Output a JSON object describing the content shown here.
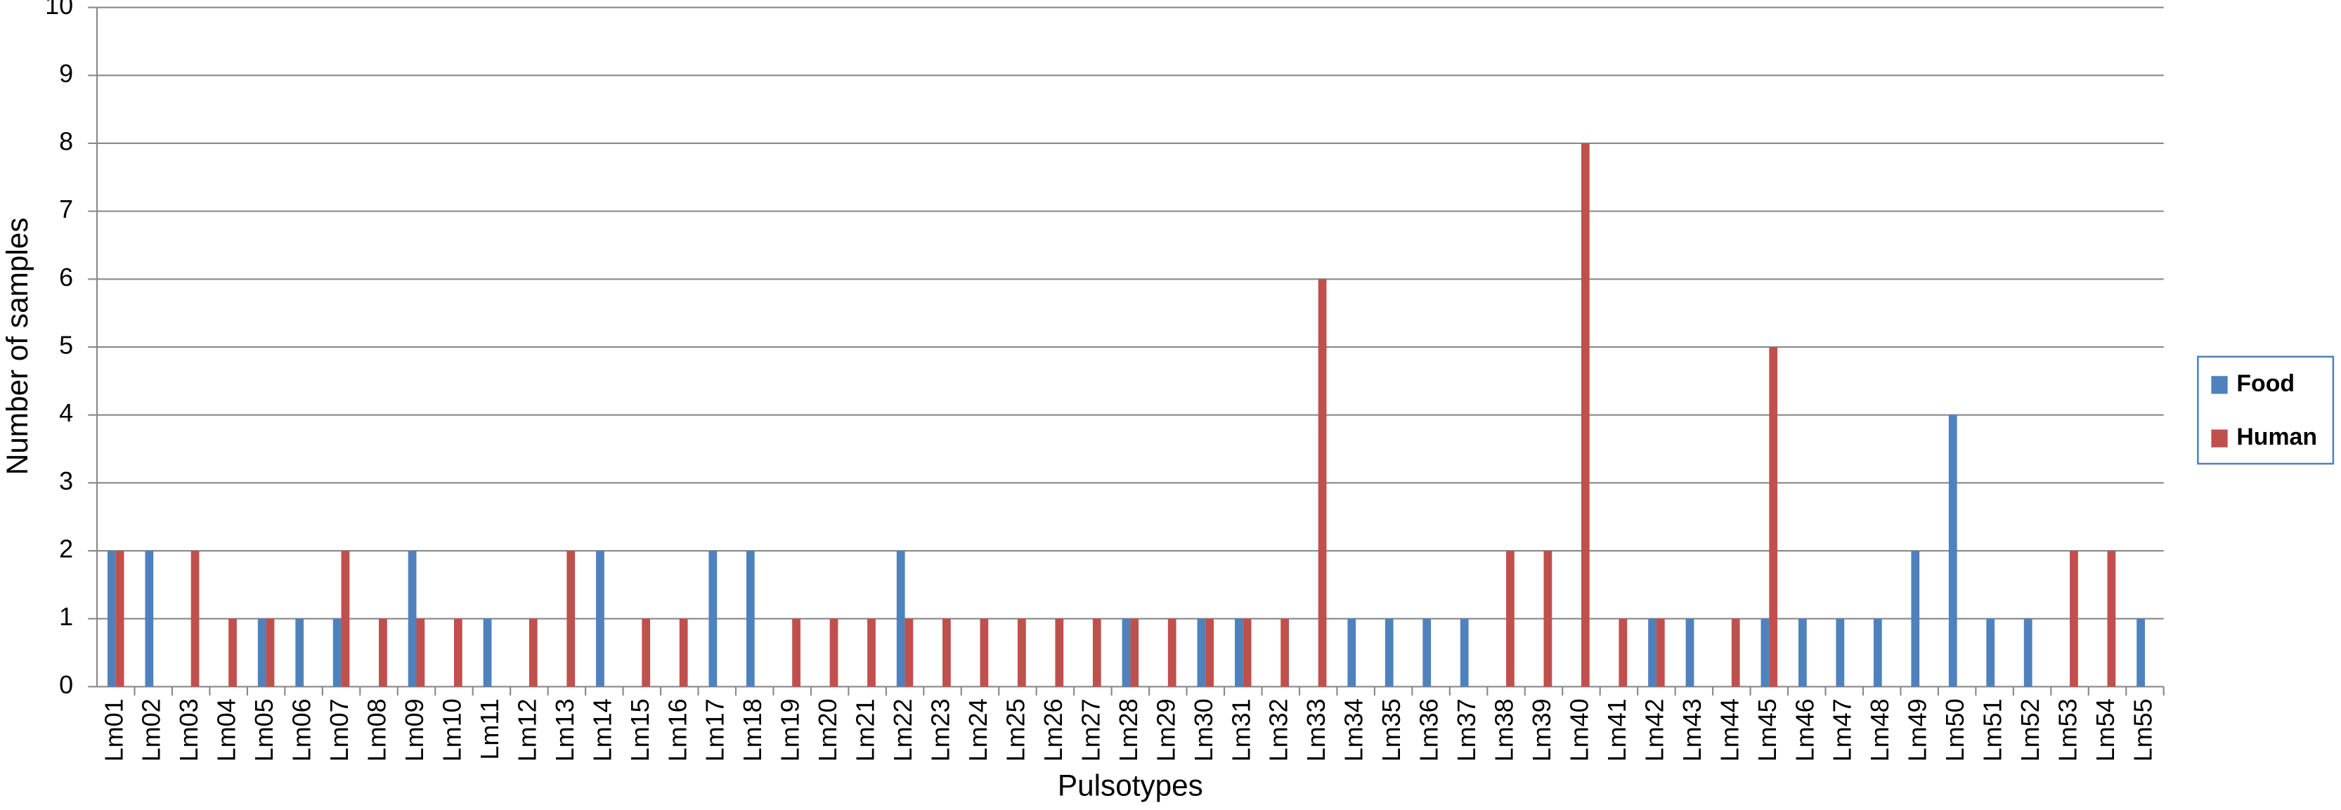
{
  "chart_data": {
    "type": "bar",
    "x_label": "Pulsotypes",
    "y_label": "Number of samples",
    "categories": [
      "Lm01",
      "Lm02",
      "Lm03",
      "Lm04",
      "Lm05",
      "Lm06",
      "Lm07",
      "Lm08",
      "Lm09",
      "Lm10",
      "Lm11",
      "Lm12",
      "Lm13",
      "Lm14",
      "Lm15",
      "Lm16",
      "Lm17",
      "Lm18",
      "Lm19",
      "Lm20",
      "Lm21",
      "Lm22",
      "Lm23",
      "Lm24",
      "Lm25",
      "Lm26",
      "Lm27",
      "Lm28",
      "Lm29",
      "Lm30",
      "Lm31",
      "Lm32",
      "Lm33",
      "Lm34",
      "Lm35",
      "Lm36",
      "Lm37",
      "Lm38",
      "Lm39",
      "Lm40",
      "Lm41",
      "Lm42",
      "Lm43",
      "Lm44",
      "Lm45",
      "Lm46",
      "Lm47",
      "Lm48",
      "Lm49",
      "Lm50",
      "Lm51",
      "Lm52",
      "Lm53",
      "Lm54",
      "Lm55"
    ],
    "series": [
      {
        "name": "Food",
        "color": "#4f81bd",
        "values": [
          2,
          2,
          0,
          0,
          1,
          1,
          1,
          0,
          2,
          0,
          1,
          0,
          0,
          2,
          0,
          0,
          2,
          2,
          0,
          0,
          0,
          2,
          0,
          0,
          0,
          0,
          0,
          1,
          0,
          1,
          1,
          0,
          0,
          1,
          1,
          1,
          1,
          0,
          0,
          0,
          0,
          1,
          1,
          0,
          1,
          1,
          1,
          1,
          2,
          4,
          1,
          1,
          0,
          0,
          1
        ]
      },
      {
        "name": "Human",
        "color": "#c0504d",
        "values": [
          2,
          0,
          2,
          1,
          1,
          0,
          2,
          1,
          1,
          1,
          0,
          1,
          2,
          0,
          1,
          1,
          0,
          0,
          1,
          1,
          1,
          1,
          1,
          1,
          1,
          1,
          1,
          1,
          1,
          1,
          1,
          1,
          6,
          0,
          0,
          0,
          0,
          2,
          2,
          8,
          1,
          1,
          0,
          1,
          5,
          0,
          0,
          0,
          0,
          0,
          0,
          0,
          2,
          2,
          0
        ]
      }
    ],
    "ylim": [
      0,
      10
    ],
    "yticks": [
      0,
      1,
      2,
      3,
      4,
      5,
      6,
      7,
      8,
      9,
      10
    ],
    "grid": true,
    "legend": "right"
  }
}
